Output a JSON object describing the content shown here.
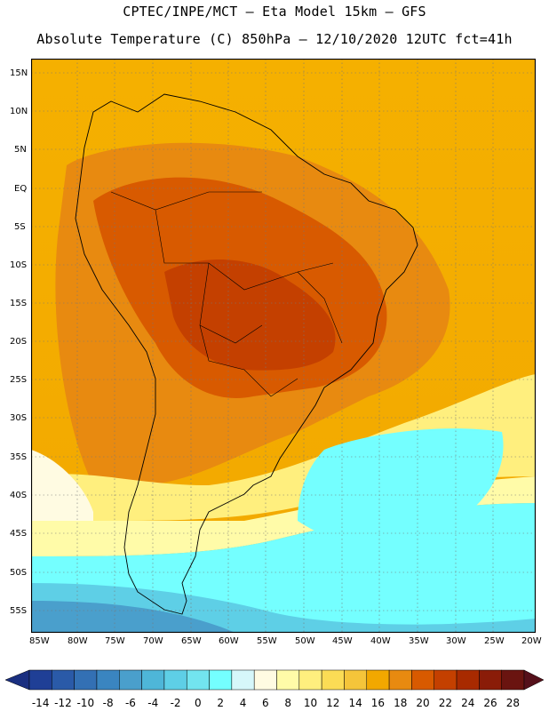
{
  "header": {
    "line1": "CPTEC/INPE/MCT –  Eta Model 15km – GFS",
    "line2": "Absolute Temperature (C) 850hPa – 12/10/2020 12UTC fct=41h"
  },
  "map": {
    "lat_labels": [
      "15N",
      "10N",
      "5N",
      "EQ",
      "5S",
      "10S",
      "15S",
      "20S",
      "25S",
      "30S",
      "35S",
      "40S",
      "45S",
      "50S",
      "55S"
    ],
    "lon_labels": [
      "85W",
      "80W",
      "75W",
      "70W",
      "65W",
      "60W",
      "55W",
      "50W",
      "45W",
      "40W",
      "35W",
      "30W",
      "25W",
      "20W"
    ],
    "region": "South America"
  },
  "colorbar": {
    "labels": [
      "-14",
      "-12",
      "-10",
      "-8",
      "-6",
      "-4",
      "-2",
      "0",
      "2",
      "4",
      "6",
      "8",
      "10",
      "12",
      "14",
      "16",
      "18",
      "20",
      "22",
      "24",
      "26",
      "28"
    ],
    "colors": [
      "#1f3f96",
      "#2a5aa8",
      "#3370b4",
      "#3a85c0",
      "#4a9fcc",
      "#4eb6d8",
      "#5ecfe6",
      "#72e4ef",
      "#74ffff",
      "#d6f7fa",
      "#fffbe2",
      "#fffba8",
      "#ffef7e",
      "#fbdc55",
      "#f5c53a",
      "#f2a800",
      "#e88a10",
      "#d85a00",
      "#c44000",
      "#a82a00",
      "#8a1c08",
      "#6a1410"
    ],
    "end_left": "#1a2f80",
    "end_right": "#55101a"
  }
}
